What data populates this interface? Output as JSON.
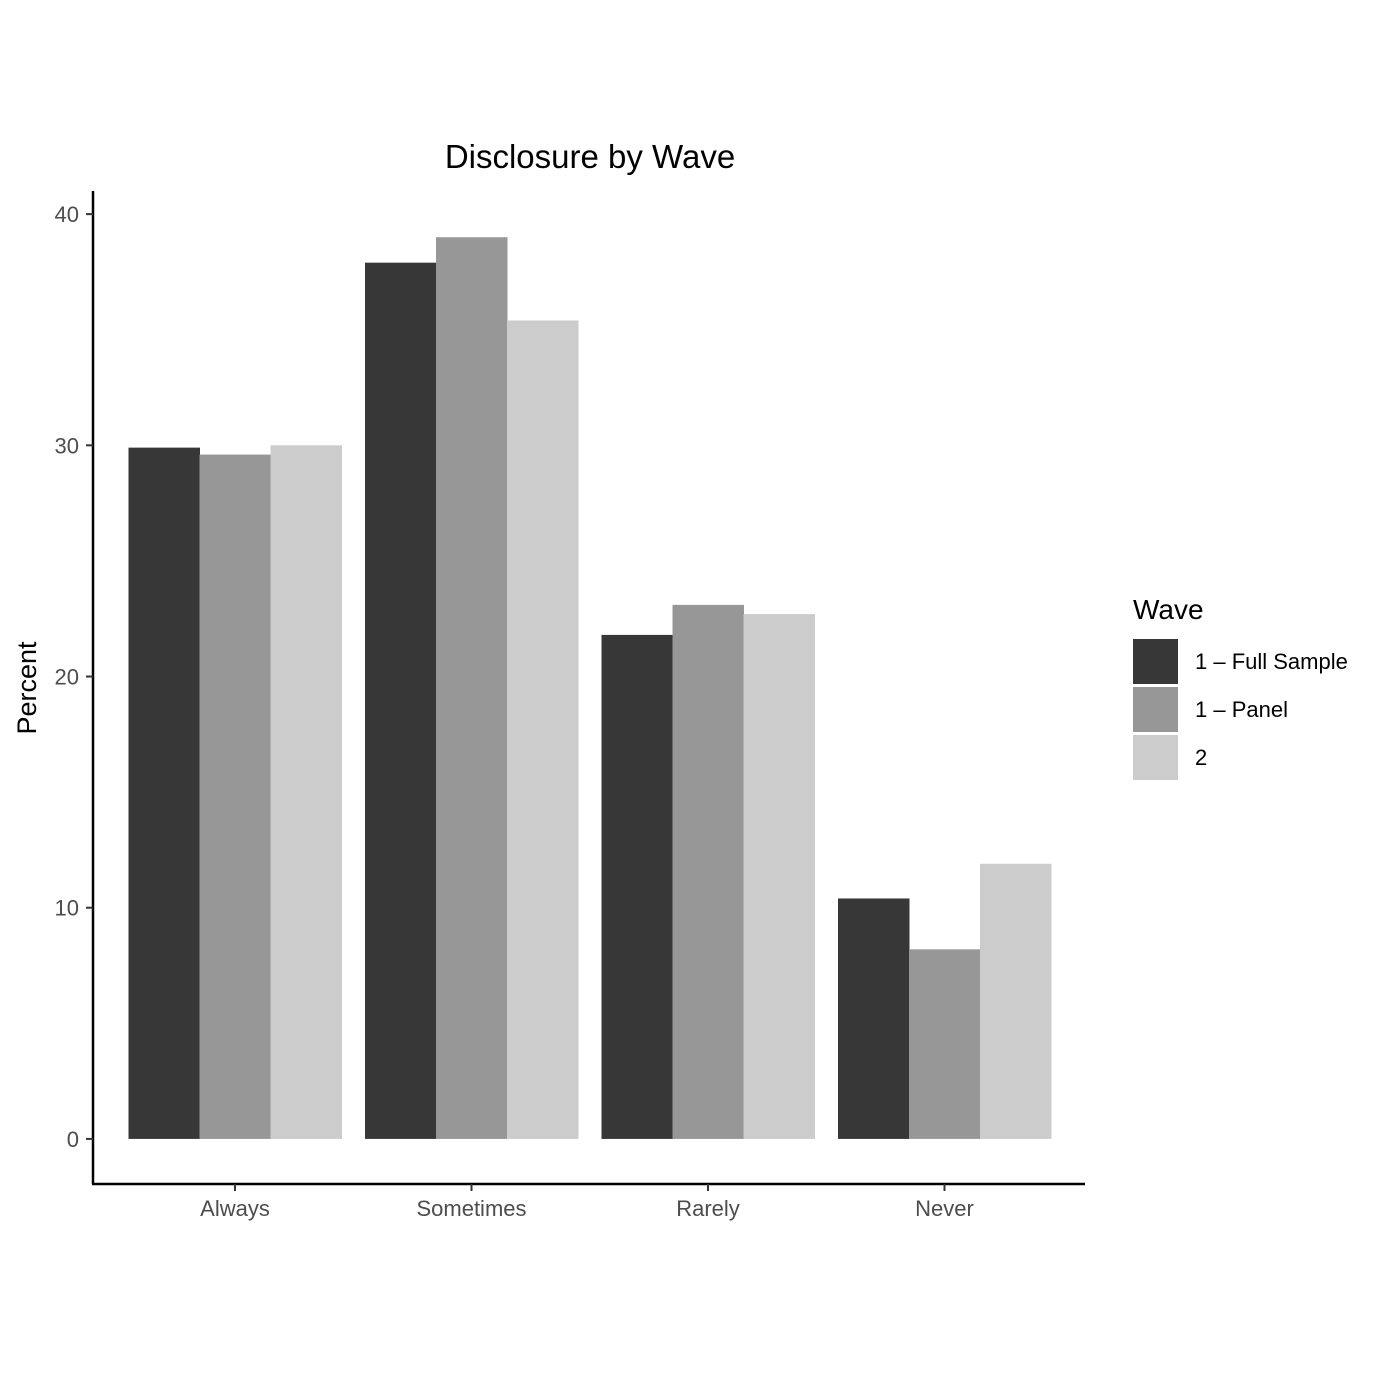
{
  "chart_data": {
    "type": "bar",
    "title": "Disclosure by Wave",
    "xlabel": "",
    "ylabel": "Percent",
    "categories": [
      "Always",
      "Sometimes",
      "Rarely",
      "Never"
    ],
    "series": [
      {
        "name": "1 – Full Sample",
        "color": "#373737",
        "values": [
          29.9,
          37.9,
          21.8,
          10.4
        ]
      },
      {
        "name": "1 – Panel",
        "color": "#979797",
        "values": [
          29.6,
          39.0,
          23.1,
          8.2
        ]
      },
      {
        "name": "2",
        "color": "#cccccc",
        "values": [
          30.0,
          35.4,
          22.7,
          11.9
        ]
      }
    ],
    "yticks": [
      0,
      10,
      20,
      30,
      40
    ],
    "ylim": [
      -1.95,
      41.0
    ],
    "grid": false,
    "legend": {
      "title": "Wave",
      "position": "right"
    }
  }
}
